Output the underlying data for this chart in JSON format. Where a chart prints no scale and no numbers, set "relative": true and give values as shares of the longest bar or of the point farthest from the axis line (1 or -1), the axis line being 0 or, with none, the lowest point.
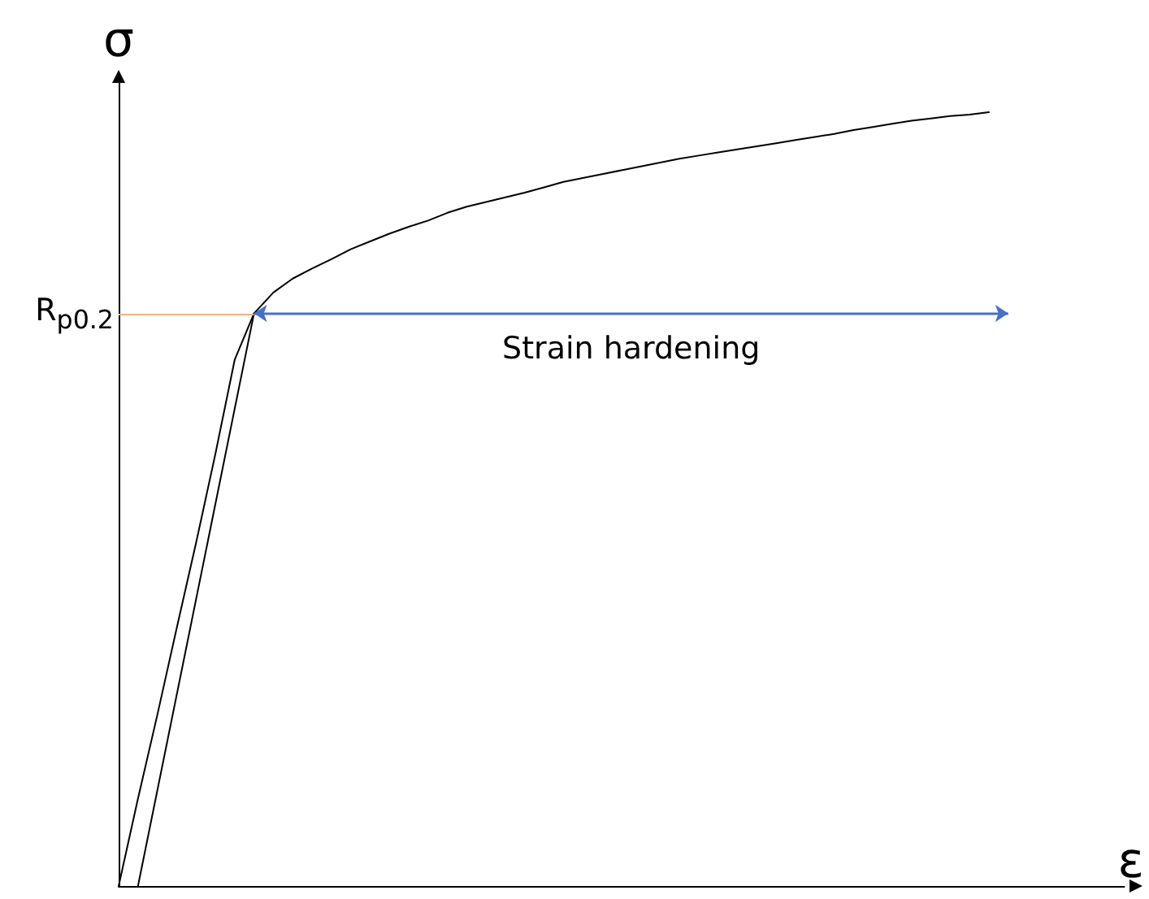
{
  "chart_data": {
    "type": "line",
    "relative": true,
    "xlabel": "ε",
    "ylabel": "σ",
    "grid": false,
    "marker": "none",
    "line_style": "solid",
    "categories": [
      null,
      null,
      null,
      null,
      null,
      null,
      null,
      null,
      null,
      null,
      null,
      null,
      null,
      null,
      null,
      null,
      null,
      null,
      null,
      null,
      null,
      null,
      null,
      null,
      null,
      null,
      null,
      null,
      null,
      null,
      null,
      null,
      null,
      null,
      null,
      null,
      null,
      null,
      null,
      null,
      null,
      null,
      null,
      null,
      null,
      null,
      null,
      null,
      null,
      null,
      null,
      null,
      null
    ],
    "series": [
      {
        "color": "#000000",
        "values": [
          0,
          0.113,
          0.221,
          0.333,
          0.443,
          0.558,
          0.68,
          0.74,
          0.767,
          0.785,
          0.798,
          0.81,
          0.823,
          0.833,
          0.843,
          0.852,
          0.86,
          0.87,
          0.878,
          0.884,
          0.89,
          0.896,
          0.903,
          0.91,
          0.915,
          0.92,
          0.925,
          0.93,
          0.935,
          0.94,
          0.944,
          0.948,
          0.952,
          0.956,
          0.96,
          0.964,
          0.968,
          0.972,
          0.977,
          0.981,
          0.985,
          0.989,
          0.992,
          0.995,
          0.997,
          1,
          null,
          null,
          null,
          null,
          null,
          null,
          null
        ]
      },
      {
        "color": "#000000",
        "values": [
          null,
          0,
          null,
          null,
          null,
          null,
          null,
          0.74,
          null,
          null,
          null,
          null,
          null,
          null,
          null,
          null,
          null,
          null,
          null,
          null,
          null,
          null,
          null,
          null,
          null,
          null,
          null,
          null,
          null,
          null,
          null,
          null,
          null,
          null,
          null,
          null,
          null,
          null,
          null,
          null,
          null,
          null,
          null,
          null,
          null,
          null,
          null,
          null,
          null,
          null,
          null,
          null,
          null
        ]
      }
    ],
    "ref_lines": [
      {
        "axis": "y",
        "value": 0.74,
        "label": "R$_{p0.2}$",
        "color": "#f4b183"
      }
    ],
    "annotations": [
      "Strain hardening"
    ]
  }
}
